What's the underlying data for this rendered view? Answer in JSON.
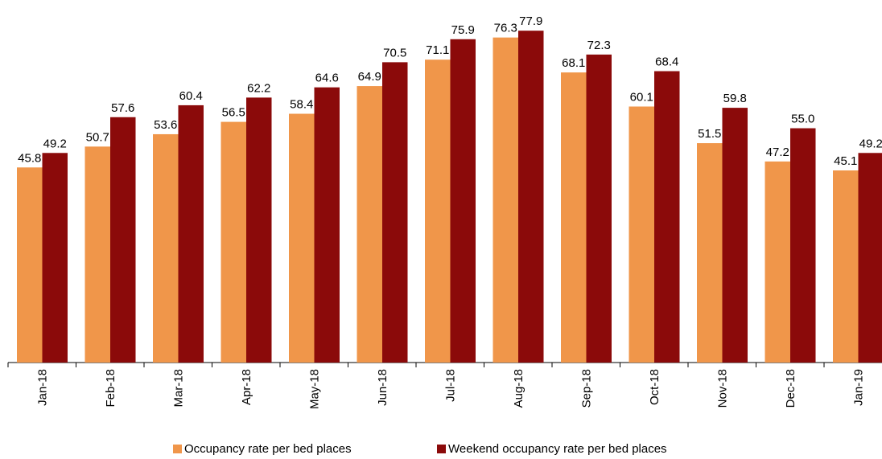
{
  "chart_data": {
    "type": "bar",
    "categories": [
      "Jan-18",
      "Feb-18",
      "Mar-18",
      "Apr-18",
      "May-18",
      "Jun-18",
      "Jul-18",
      "Aug-18",
      "Sep-18",
      "Oct-18",
      "Nov-18",
      "Dec-18",
      "Jan-19"
    ],
    "series": [
      {
        "name": "Occupancy rate per bed places",
        "color": "#F0964A",
        "values": [
          45.8,
          50.7,
          53.6,
          56.5,
          58.4,
          64.9,
          71.1,
          76.3,
          68.1,
          60.1,
          51.5,
          47.2,
          45.1
        ],
        "labels": [
          "45.8",
          "50.7",
          "53.6",
          "56.5",
          "58.4",
          "64.9",
          "71.1",
          "76.3",
          "68.1",
          "60.1",
          "51.5",
          "47.2",
          "45.1"
        ]
      },
      {
        "name": "Weekend occupancy rate per bed places",
        "color": "#8B0A0A",
        "values": [
          49.2,
          57.6,
          60.4,
          62.2,
          64.6,
          70.5,
          75.9,
          77.9,
          72.3,
          68.4,
          59.8,
          55.0,
          49.2
        ],
        "labels": [
          "49.2",
          "57.6",
          "60.4",
          "62.2",
          "64.6",
          "70.5",
          "75.9",
          "77.9",
          "72.3",
          "68.4",
          "59.8",
          "55.0",
          "49.2"
        ]
      }
    ],
    "ylim": [
      0,
      78.5
    ],
    "grid": false,
    "legend_position": "bottom"
  }
}
